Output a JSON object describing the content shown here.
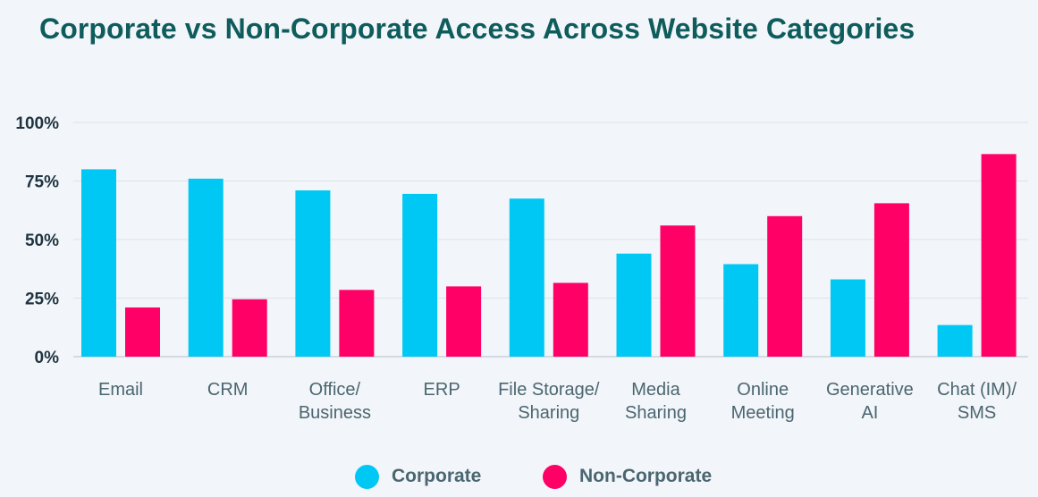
{
  "chart_data": {
    "type": "bar",
    "title": "Corporate vs Non-Corporate Access Across Website Categories",
    "xlabel": "",
    "ylabel": "",
    "ylim": [
      0,
      100
    ],
    "y_ticks": [
      0,
      25,
      50,
      75,
      100
    ],
    "y_tick_labels": [
      "0%",
      "25%",
      "50%",
      "75%",
      "100%"
    ],
    "grid": true,
    "legend_position": "bottom-center",
    "categories": [
      [
        "Email"
      ],
      [
        "CRM"
      ],
      [
        "Office/",
        "Business"
      ],
      [
        "ERP"
      ],
      [
        "File Storage/",
        "Sharing"
      ],
      [
        "Media",
        "Sharing"
      ],
      [
        "Online",
        "Meeting"
      ],
      [
        "Generative",
        "AI"
      ],
      [
        "Chat (IM)/",
        "SMS"
      ]
    ],
    "series": [
      {
        "name": "Corporate",
        "color": "#00c8f5",
        "values": [
          80,
          76,
          71,
          69.5,
          67.5,
          44,
          39.5,
          33,
          13.5
        ]
      },
      {
        "name": "Non-Corporate",
        "color": "#ff0066",
        "values": [
          21,
          24.5,
          28.5,
          30,
          31.5,
          56,
          60,
          65.5,
          86.5
        ]
      }
    ]
  }
}
